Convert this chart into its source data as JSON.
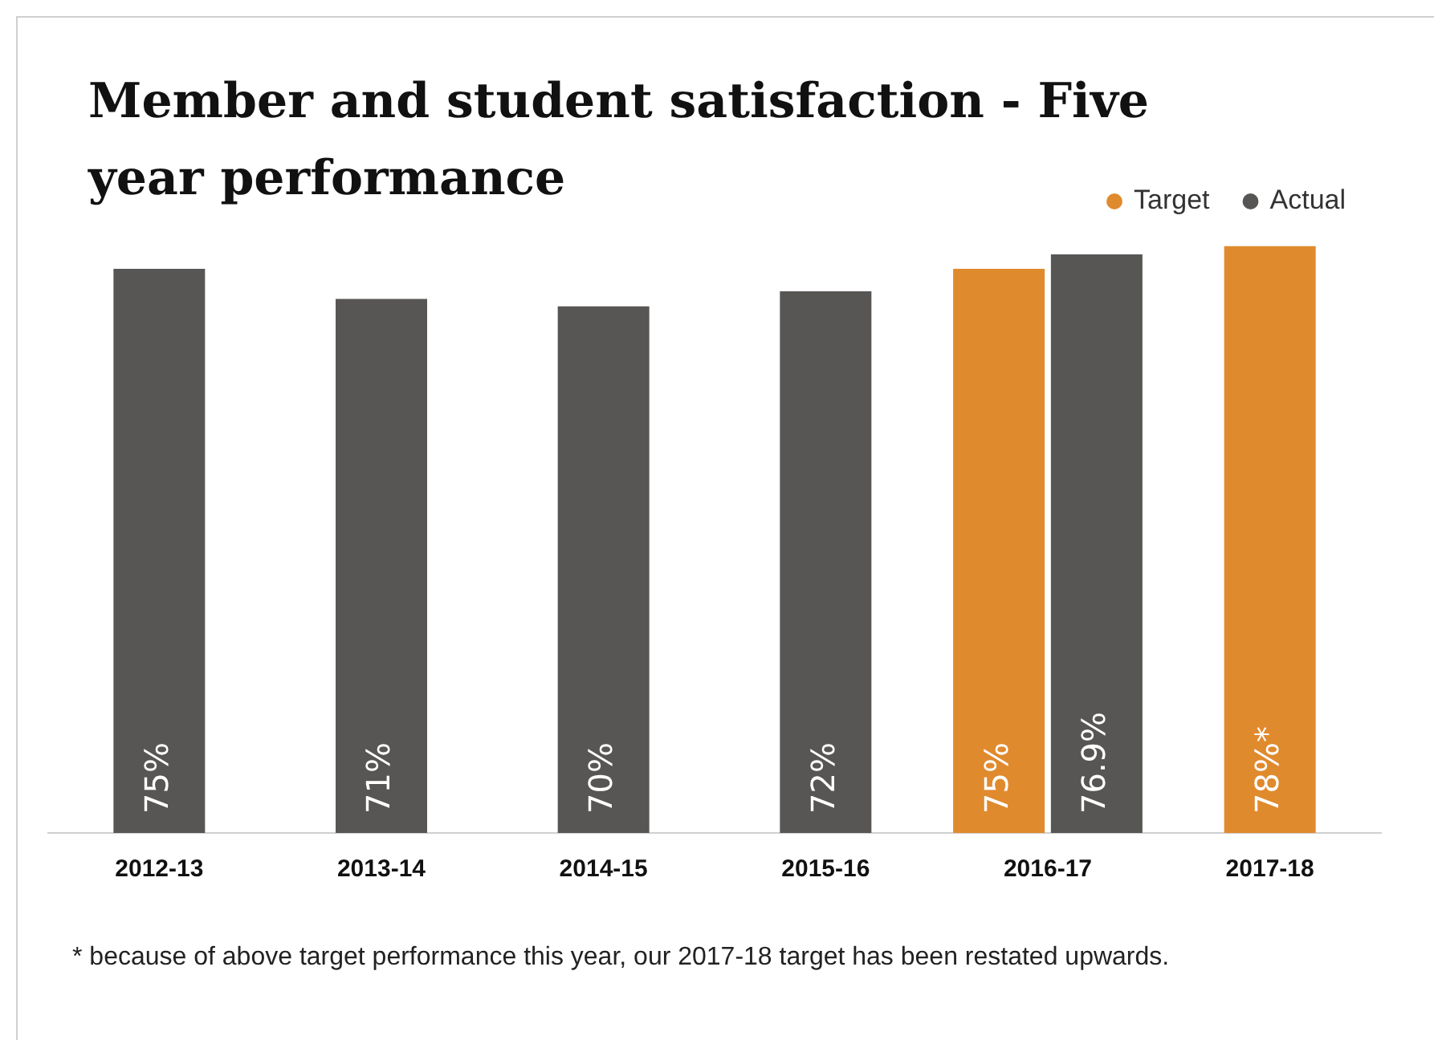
{
  "chart_data": {
    "type": "bar",
    "title": "Member and student satisfaction - Five year performance",
    "categories": [
      "2012-13",
      "2013-14",
      "2014-15",
      "2015-16",
      "2016-17",
      "2017-18"
    ],
    "series": [
      {
        "name": "Target",
        "color": "#e08a2e",
        "values": [
          null,
          null,
          null,
          null,
          75,
          78
        ],
        "value_labels": [
          null,
          null,
          null,
          null,
          "75%",
          "78%*"
        ]
      },
      {
        "name": "Actual",
        "color": "#575654",
        "values": [
          75,
          71,
          70,
          72,
          76.9,
          null
        ],
        "value_labels": [
          "75%",
          "71%",
          "70%",
          "72%",
          "76.9%",
          null
        ]
      }
    ],
    "tick_labels": "x",
    "legend": "top right",
    "grid": false,
    "annotations": [
      "* because of above target performance this year, our 2017-18 target has been restated upwards."
    ]
  }
}
